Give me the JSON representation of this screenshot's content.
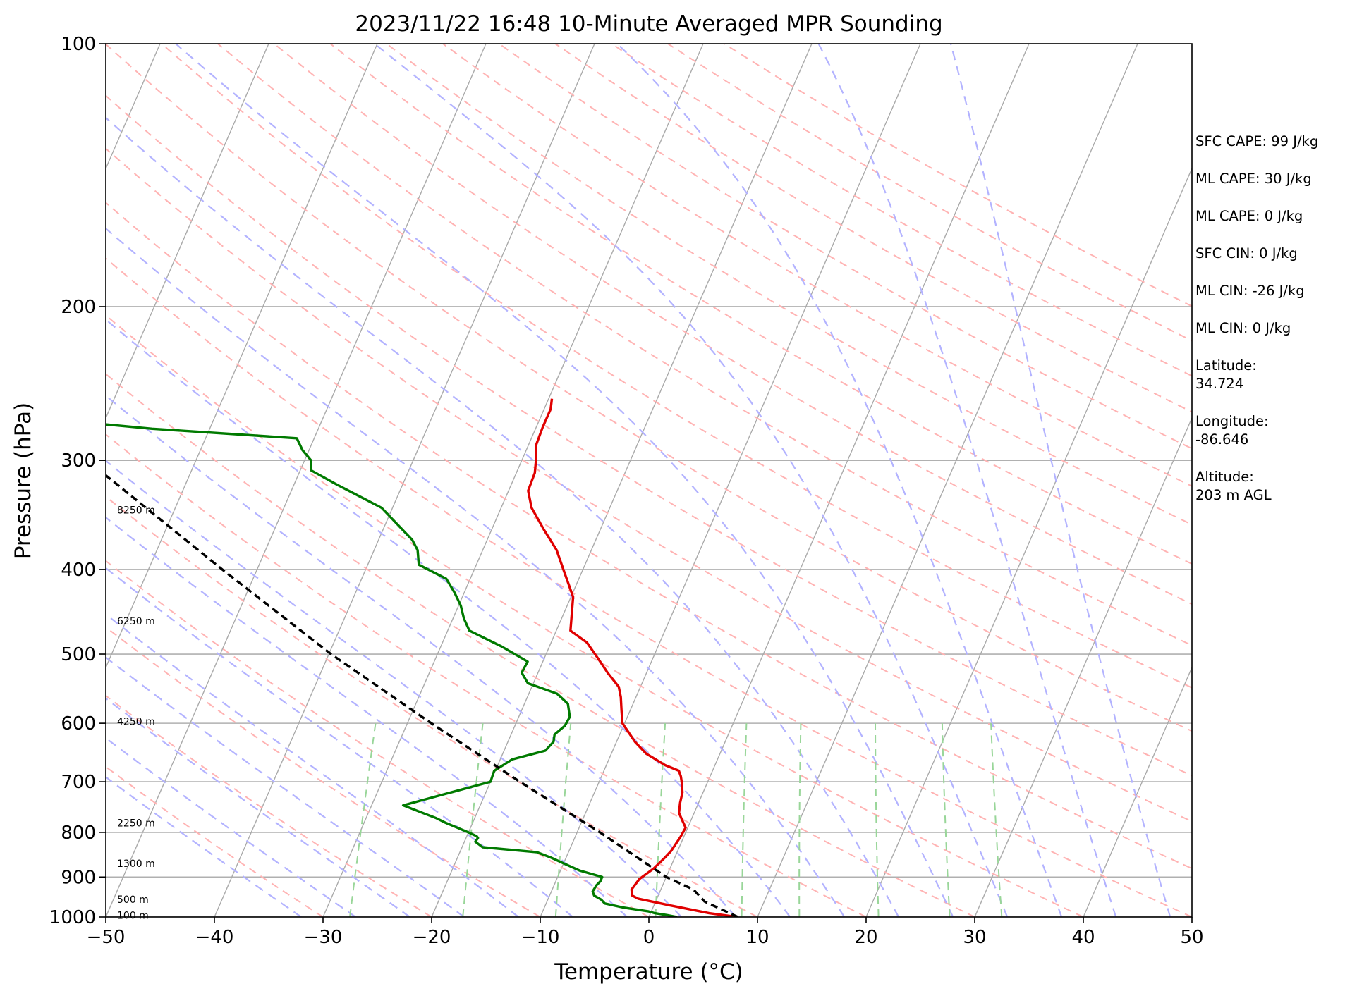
{
  "chart_data": {
    "type": "line",
    "title": "2023/11/22 16:48 10-Minute Averaged MPR Sounding",
    "xlabel": "Temperature (°C)",
    "ylabel": "Pressure (hPa)",
    "xlim": [
      -50,
      50
    ],
    "ylim": [
      1000,
      100
    ],
    "y_scale": "log",
    "skew": "skew-T",
    "grid": true,
    "x_ticks": [
      "−50",
      "−40",
      "−30",
      "−20",
      "−10",
      "0",
      "10",
      "20",
      "30",
      "40",
      "50"
    ],
    "x_tick_values": [
      -50,
      -40,
      -30,
      -20,
      -10,
      0,
      10,
      20,
      30,
      40,
      50
    ],
    "y_ticks": [
      "1000",
      "900",
      "800",
      "700",
      "600",
      "500",
      "400",
      "300",
      "200",
      "100"
    ],
    "y_tick_values": [
      1000,
      900,
      800,
      700,
      600,
      500,
      400,
      300,
      200,
      100
    ],
    "height_labels": [
      {
        "p": 995,
        "text": "100 m"
      },
      {
        "p": 955,
        "text": "500 m"
      },
      {
        "p": 868,
        "text": "1300 m"
      },
      {
        "p": 780,
        "text": "2250 m"
      },
      {
        "p": 597,
        "text": "4250 m"
      },
      {
        "p": 458,
        "text": "6250 m"
      },
      {
        "p": 342,
        "text": "8250 m"
      }
    ],
    "series": [
      {
        "color": "#e00000",
        "points": [
          [
            1000,
            8.2
          ],
          [
            990,
            5.4
          ],
          [
            970,
            1.5
          ],
          [
            953,
            -1.7
          ],
          [
            945,
            -2.4
          ],
          [
            930,
            -2.7
          ],
          [
            905,
            -2.4
          ],
          [
            880,
            -1.5
          ],
          [
            855,
            -0.9
          ],
          [
            840,
            -0.6
          ],
          [
            830,
            -0.5
          ],
          [
            810,
            -0.3
          ],
          [
            790,
            -0.2
          ],
          [
            775,
            -0.8
          ],
          [
            760,
            -1.4
          ],
          [
            740,
            -1.7
          ],
          [
            720,
            -1.9
          ],
          [
            700,
            -2.4
          ],
          [
            690,
            -2.7
          ],
          [
            680,
            -3.1
          ],
          [
            670,
            -4.6
          ],
          [
            650,
            -6.8
          ],
          [
            630,
            -8.3
          ],
          [
            600,
            -10.2
          ],
          [
            580,
            -10.8
          ],
          [
            560,
            -11.4
          ],
          [
            545,
            -12.0
          ],
          [
            525,
            -13.6
          ],
          [
            505,
            -15.1
          ],
          [
            485,
            -16.7
          ],
          [
            470,
            -18.7
          ],
          [
            455,
            -19.1
          ],
          [
            430,
            -19.8
          ],
          [
            400,
            -21.8
          ],
          [
            380,
            -23.2
          ],
          [
            360,
            -25.2
          ],
          [
            340,
            -27.2
          ],
          [
            325,
            -28.2
          ],
          [
            310,
            -28.3
          ],
          [
            300,
            -28.7
          ],
          [
            288,
            -29.3
          ],
          [
            275,
            -29.4
          ],
          [
            262,
            -29.4
          ],
          [
            255,
            -29.7
          ]
        ]
      },
      {
        "color": "#007a00",
        "points": [
          [
            1000,
            2.6
          ],
          [
            995,
            1.6
          ],
          [
            990,
            0.4
          ],
          [
            985,
            -0.3
          ],
          [
            975,
            -2.8
          ],
          [
            965,
            -4.6
          ],
          [
            955,
            -5.1
          ],
          [
            945,
            -5.9
          ],
          [
            935,
            -6.2
          ],
          [
            920,
            -6.1
          ],
          [
            910,
            -5.9
          ],
          [
            900,
            -5.9
          ],
          [
            885,
            -8.2
          ],
          [
            870,
            -9.8
          ],
          [
            855,
            -11.4
          ],
          [
            843,
            -12.9
          ],
          [
            832,
            -18.1
          ],
          [
            820,
            -19.0
          ],
          [
            812,
            -18.9
          ],
          [
            808,
            -19.1
          ],
          [
            800,
            -20.0
          ],
          [
            780,
            -22.5
          ],
          [
            770,
            -23.6
          ],
          [
            760,
            -25.0
          ],
          [
            745,
            -27.1
          ],
          [
            720,
            -23.2
          ],
          [
            700,
            -20.0
          ],
          [
            680,
            -20.1
          ],
          [
            660,
            -18.9
          ],
          [
            645,
            -16.2
          ],
          [
            630,
            -15.8
          ],
          [
            618,
            -16.0
          ],
          [
            604,
            -15.4
          ],
          [
            590,
            -15.3
          ],
          [
            570,
            -16.0
          ],
          [
            555,
            -17.4
          ],
          [
            540,
            -20.5
          ],
          [
            525,
            -21.5
          ],
          [
            510,
            -21.4
          ],
          [
            490,
            -24.4
          ],
          [
            470,
            -28.0
          ],
          [
            455,
            -29.0
          ],
          [
            440,
            -29.8
          ],
          [
            425,
            -30.9
          ],
          [
            410,
            -32.2
          ],
          [
            395,
            -35.3
          ],
          [
            380,
            -36.0
          ],
          [
            370,
            -36.9
          ],
          [
            340,
            -41.0
          ],
          [
            320,
            -46.0
          ],
          [
            308,
            -49.0
          ],
          [
            300,
            -49.4
          ],
          [
            292,
            -50.6
          ],
          [
            283,
            -51.6
          ],
          [
            276,
            -65.3
          ],
          [
            270,
            -73.8
          ]
        ]
      },
      {
        "color": "#000000",
        "style": "dashed",
        "points": [
          [
            1000,
            8.2
          ],
          [
            960,
            4.5
          ],
          [
            930,
            3.0
          ],
          [
            900,
            0.0
          ],
          [
            800,
            -7.9
          ],
          [
            700,
            -17.3
          ],
          [
            600,
            -27.8
          ],
          [
            500,
            -39.8
          ],
          [
            400,
            -53.2
          ],
          [
            300,
            -70.0
          ],
          [
            255,
            -79.0
          ]
        ]
      }
    ],
    "reference_lines": {
      "isotherms_color": "#aaaaaa",
      "dry_adiabats_color": "#ffb3b3",
      "moist_adiabats_color": "#b3b3ff",
      "mixing_ratio_color": "#99d699"
    }
  },
  "info_panel": [
    "SFC CAPE: 99 J/kg",
    "ML CAPE: 30 J/kg",
    "ML CAPE: 0 J/kg",
    "SFC CIN: 0 J/kg",
    "ML CIN: -26 J/kg",
    "ML CIN: 0 J/kg",
    "Latitude:\n34.724",
    "Longitude:\n-86.646",
    "Altitude:\n203 m AGL"
  ]
}
